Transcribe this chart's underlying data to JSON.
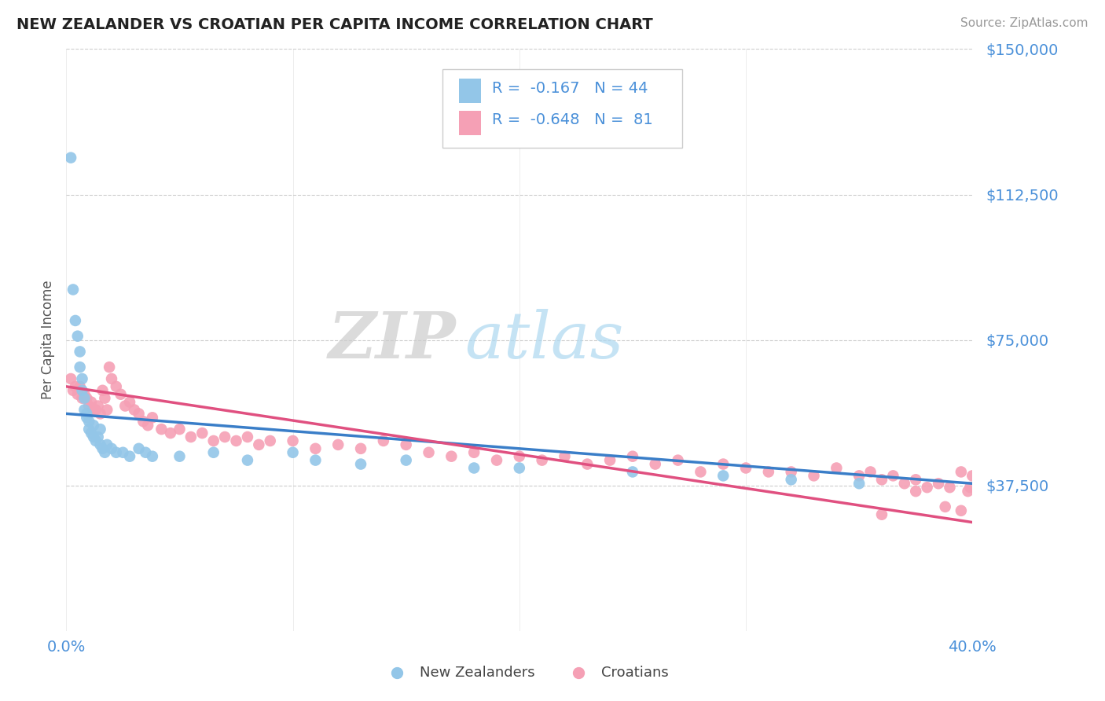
{
  "title": "NEW ZEALANDER VS CROATIAN PER CAPITA INCOME CORRELATION CHART",
  "source": "Source: ZipAtlas.com",
  "ylabel": "Per Capita Income",
  "xmin": 0.0,
  "xmax": 0.4,
  "ymin": 0,
  "ymax": 150000,
  "yticks": [
    37500,
    75000,
    112500,
    150000
  ],
  "ytick_labels": [
    "$37,500",
    "$75,000",
    "$112,500",
    "$150,000"
  ],
  "nz_color": "#93C6E8",
  "nz_line_color": "#3A7EC8",
  "cr_color": "#F5A0B5",
  "cr_line_color": "#E05080",
  "legend_nz_r": "-0.167",
  "legend_nz_n": "44",
  "legend_cr_r": "-0.648",
  "legend_cr_n": "81",
  "axis_color": "#4A90D9",
  "watermark_zip": "ZIP",
  "watermark_atlas": "atlas",
  "background_color": "#FFFFFF",
  "grid_color": "#CCCCCC",
  "nz_x": [
    0.002,
    0.003,
    0.004,
    0.005,
    0.006,
    0.006,
    0.007,
    0.007,
    0.008,
    0.008,
    0.009,
    0.009,
    0.01,
    0.01,
    0.011,
    0.012,
    0.012,
    0.013,
    0.014,
    0.015,
    0.015,
    0.016,
    0.017,
    0.018,
    0.02,
    0.022,
    0.025,
    0.028,
    0.032,
    0.035,
    0.038,
    0.05,
    0.065,
    0.08,
    0.1,
    0.11,
    0.13,
    0.15,
    0.18,
    0.2,
    0.25,
    0.29,
    0.32,
    0.35
  ],
  "nz_y": [
    122000,
    88000,
    80000,
    76000,
    72000,
    68000,
    65000,
    62000,
    60000,
    57000,
    55000,
    56000,
    54000,
    52000,
    51000,
    53000,
    50000,
    49000,
    50000,
    52000,
    48000,
    47000,
    46000,
    48000,
    47000,
    46000,
    46000,
    45000,
    47000,
    46000,
    45000,
    45000,
    46000,
    44000,
    46000,
    44000,
    43000,
    44000,
    42000,
    42000,
    41000,
    40000,
    39000,
    38000
  ],
  "cr_x": [
    0.002,
    0.003,
    0.004,
    0.005,
    0.006,
    0.007,
    0.008,
    0.009,
    0.01,
    0.011,
    0.012,
    0.013,
    0.014,
    0.015,
    0.016,
    0.017,
    0.018,
    0.019,
    0.02,
    0.022,
    0.024,
    0.026,
    0.028,
    0.03,
    0.032,
    0.034,
    0.036,
    0.038,
    0.042,
    0.046,
    0.05,
    0.055,
    0.06,
    0.065,
    0.07,
    0.075,
    0.08,
    0.085,
    0.09,
    0.1,
    0.11,
    0.12,
    0.13,
    0.14,
    0.15,
    0.16,
    0.17,
    0.18,
    0.19,
    0.2,
    0.21,
    0.22,
    0.23,
    0.24,
    0.25,
    0.26,
    0.27,
    0.28,
    0.29,
    0.3,
    0.31,
    0.32,
    0.33,
    0.34,
    0.35,
    0.355,
    0.36,
    0.365,
    0.37,
    0.375,
    0.38,
    0.385,
    0.39,
    0.395,
    0.398,
    0.399,
    0.4,
    0.395,
    0.388,
    0.375,
    0.36
  ],
  "cr_y": [
    65000,
    62000,
    63000,
    61000,
    63000,
    60000,
    61000,
    60000,
    58000,
    59000,
    57000,
    57000,
    58000,
    56000,
    62000,
    60000,
    57000,
    68000,
    65000,
    63000,
    61000,
    58000,
    59000,
    57000,
    56000,
    54000,
    53000,
    55000,
    52000,
    51000,
    52000,
    50000,
    51000,
    49000,
    50000,
    49000,
    50000,
    48000,
    49000,
    49000,
    47000,
    48000,
    47000,
    49000,
    48000,
    46000,
    45000,
    46000,
    44000,
    45000,
    44000,
    45000,
    43000,
    44000,
    45000,
    43000,
    44000,
    41000,
    43000,
    42000,
    41000,
    41000,
    40000,
    42000,
    40000,
    41000,
    39000,
    40000,
    38000,
    39000,
    37000,
    38000,
    37000,
    41000,
    36000,
    37000,
    40000,
    31000,
    32000,
    36000,
    30000
  ]
}
